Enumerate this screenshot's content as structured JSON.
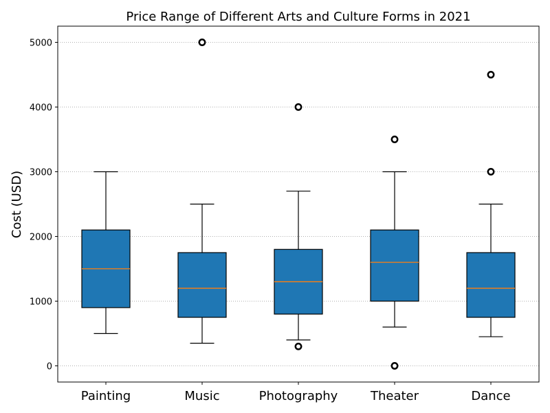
{
  "chart_data": {
    "type": "box",
    "title": "Price Range of Different Arts and Culture Forms in 2021",
    "xlabel": "",
    "ylabel": "Cost (USD)",
    "ylim": [
      -250,
      5250
    ],
    "yticks": [
      0,
      1000,
      2000,
      3000,
      4000,
      5000
    ],
    "grid": "y-dotted",
    "categories": [
      "Painting",
      "Music",
      "Photography",
      "Theater",
      "Dance"
    ],
    "boxes": [
      {
        "min": 500,
        "q1": 900,
        "median": 1500,
        "q3": 2100,
        "max": 3000,
        "outliers": []
      },
      {
        "min": 350,
        "q1": 750,
        "median": 1200,
        "q3": 1750,
        "max": 2500,
        "outliers": [
          5000
        ]
      },
      {
        "min": 400,
        "q1": 800,
        "median": 1300,
        "q3": 1800,
        "max": 2700,
        "outliers": [
          300,
          4000
        ]
      },
      {
        "min": 600,
        "q1": 1000,
        "median": 1600,
        "q3": 2100,
        "max": 3000,
        "outliers": [
          0,
          3500
        ]
      },
      {
        "min": 450,
        "q1": 750,
        "median": 1200,
        "q3": 1750,
        "max": 2500,
        "outliers": [
          3000,
          4500
        ]
      }
    ],
    "colors": {
      "box_fill": "#1f77b4",
      "median": "#ff7f0e",
      "grid": "#b0b0b0",
      "outlier_fill": "#ffffff"
    }
  }
}
